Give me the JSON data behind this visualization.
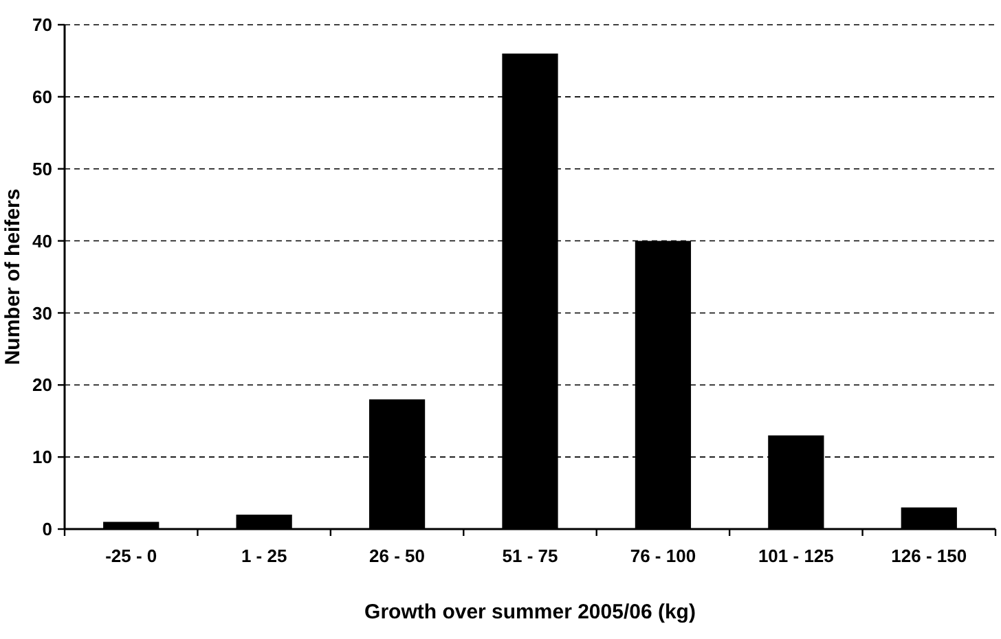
{
  "chart_data": {
    "type": "bar",
    "xlabel": "Growth over summer 2005/06 (kg)",
    "ylabel": "Number of heifers",
    "categories": [
      "-25 - 0",
      "1 - 25",
      "26 - 50",
      "51 - 75",
      "76 - 100",
      "101 - 125",
      "126 - 150"
    ],
    "values": [
      1,
      2,
      18,
      66,
      40,
      13,
      3
    ],
    "color": "#000000",
    "ylim": [
      0,
      70
    ],
    "yticks": [
      0,
      10,
      20,
      30,
      40,
      50,
      60,
      70
    ],
    "grid": "y"
  }
}
